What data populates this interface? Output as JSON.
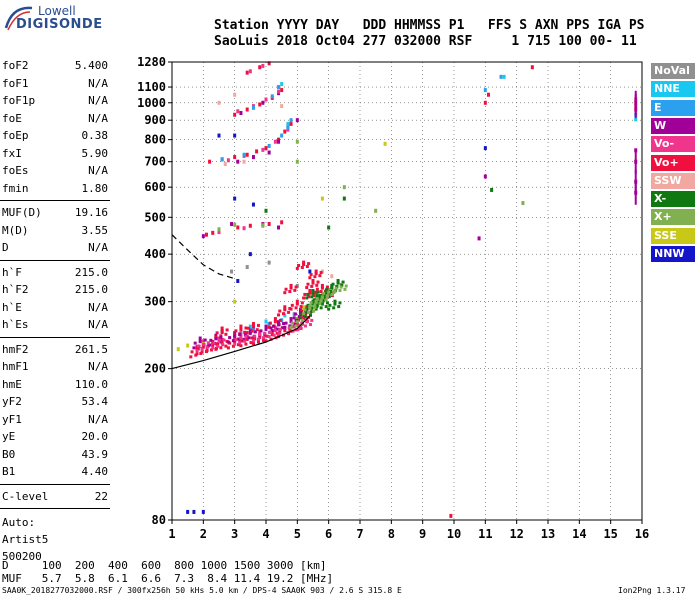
{
  "logo": {
    "line1": "Lowell",
    "line2": "DIGISONDE"
  },
  "header": {
    "labels_row": "Station YYYY DAY   DDD HHMMSS P1   FFS S AXN PPS IGA PS",
    "values_row": "SaoLuis 2018 Oct04 277 032000 RSF     1 715 100 00- 11"
  },
  "params_a": [
    {
      "label": "foF2",
      "value": "5.400"
    },
    {
      "label": "foF1",
      "value": "N/A"
    },
    {
      "label": "foF1p",
      "value": "N/A"
    },
    {
      "label": "foE",
      "value": "N/A"
    },
    {
      "label": "foEp",
      "value": "0.38"
    },
    {
      "label": "fxI",
      "value": "5.90"
    },
    {
      "label": "foEs",
      "value": "N/A"
    },
    {
      "label": "fmin",
      "value": "1.80"
    }
  ],
  "params_b": [
    {
      "label": "MUF(D)",
      "value": "19.16"
    },
    {
      "label": "M(D)",
      "value": "3.55"
    },
    {
      "label": "D",
      "value": "N/A"
    }
  ],
  "params_c": [
    {
      "label": "h`F",
      "value": "215.0"
    },
    {
      "label": "h`F2",
      "value": "215.0"
    },
    {
      "label": "h`E",
      "value": "N/A"
    },
    {
      "label": "h`Es",
      "value": "N/A"
    }
  ],
  "params_d": [
    {
      "label": "hmF2",
      "value": "261.5"
    },
    {
      "label": "hmF1",
      "value": "N/A"
    },
    {
      "label": "hmE",
      "value": "110.0"
    },
    {
      "label": "yF2",
      "value": "53.4"
    },
    {
      "label": "yF1",
      "value": "N/A"
    },
    {
      "label": "yE",
      "value": "20.0"
    },
    {
      "label": "B0",
      "value": "43.9"
    },
    {
      "label": "B1",
      "value": "4.40"
    }
  ],
  "params_e": [
    {
      "label": "C-level",
      "value": "22"
    }
  ],
  "auto_lines": [
    "Auto:",
    "Artist5",
    "500200"
  ],
  "legend": [
    {
      "label": "NoVal",
      "color": "#909090"
    },
    {
      "label": "NNE",
      "color": "#19c8f0"
    },
    {
      "label": "E",
      "color": "#2aa0ee"
    },
    {
      "label": "W",
      "color": "#a00098"
    },
    {
      "label": "Vo-",
      "color": "#f0358c"
    },
    {
      "label": "Vo+",
      "color": "#f01040"
    },
    {
      "label": "SSW",
      "color": "#f0a8a0"
    },
    {
      "label": "X-",
      "color": "#107810"
    },
    {
      "label": "X+",
      "color": "#80b050"
    },
    {
      "label": "SSE",
      "color": "#c8c818"
    },
    {
      "label": "NNW",
      "color": "#1414c8"
    }
  ],
  "bottom_table": {
    "row1": "D     100  200  400  600  800 1000 1500 3000 [km]",
    "row2": "MUF   5.7  5.8  6.1  6.6  7.3  8.4 11.4 19.2 [MHz]"
  },
  "footer": {
    "left": "SAA0K_2018277032000.RSF / 300fx256h 50 kHs 5.0 km / DPS-4 SAA0K 903 / 2.6 S 315.8 E",
    "right": "Ion2Png 1.3.17"
  },
  "chart_data": {
    "type": "scatter",
    "title": "",
    "xlabel": "",
    "ylabel": "",
    "xlim": [
      1,
      16
    ],
    "ylim": [
      80,
      1280
    ],
    "y_scale": "log",
    "x_ticks": [
      1,
      2,
      3,
      4,
      5,
      6,
      7,
      8,
      9,
      10,
      11,
      12,
      13,
      14,
      15,
      16
    ],
    "y_ticks": [
      80,
      200,
      300,
      400,
      500,
      600,
      700,
      800,
      900,
      1000,
      1100,
      1280
    ],
    "grid": true,
    "legend_placement": "right",
    "traces": [
      {
        "color": "#000000",
        "style": "solid",
        "x": [
          1.0,
          2.0,
          3.0,
          4.0,
          5.0,
          5.4
        ],
        "y": [
          200,
          210,
          222,
          235,
          255,
          275
        ]
      },
      {
        "color": "#000000",
        "style": "dashed",
        "x": [
          1.0,
          1.5,
          2.0,
          2.5,
          3.0
        ],
        "y": [
          450,
          410,
          375,
          355,
          345
        ]
      }
    ],
    "series": [
      {
        "color": "#f01040",
        "points": [
          [
            1.8,
            228
          ],
          [
            2.0,
            232
          ],
          [
            2.3,
            235
          ],
          [
            2.6,
            238
          ],
          [
            3.0,
            240
          ],
          [
            3.4,
            243
          ],
          [
            3.8,
            246
          ],
          [
            4.2,
            250
          ],
          [
            4.6,
            256
          ],
          [
            5.0,
            264
          ],
          [
            5.2,
            275
          ],
          [
            5.3,
            290
          ],
          [
            5.4,
            320
          ],
          [
            5.0,
            300
          ],
          [
            4.6,
            290
          ],
          [
            4.3,
            270
          ],
          [
            3.6,
            262
          ],
          [
            3.2,
            258
          ],
          [
            2.6,
            255
          ],
          [
            5.5,
            340
          ],
          [
            5.8,
            330
          ],
          [
            6.0,
            320
          ],
          [
            5.6,
            360
          ],
          [
            5.2,
            380
          ],
          [
            4.8,
            330
          ],
          [
            2.1,
            450
          ],
          [
            2.3,
            455
          ],
          [
            3.1,
            470
          ],
          [
            3.5,
            475
          ],
          [
            4.1,
            480
          ],
          [
            4.5,
            485
          ],
          [
            2.2,
            700
          ],
          [
            2.6,
            710
          ],
          [
            3.0,
            720
          ],
          [
            3.4,
            730
          ],
          [
            3.7,
            745
          ],
          [
            4.0,
            760
          ],
          [
            4.4,
            800
          ],
          [
            4.6,
            840
          ],
          [
            4.8,
            880
          ],
          [
            3.0,
            930
          ],
          [
            3.4,
            960
          ],
          [
            3.8,
            990
          ],
          [
            4.2,
            1030
          ],
          [
            4.5,
            1080
          ],
          [
            3.4,
            1200
          ],
          [
            3.8,
            1240
          ],
          [
            4.1,
            1270
          ],
          [
            9.9,
            82
          ],
          [
            11.0,
            1000
          ],
          [
            11.1,
            1050
          ],
          [
            12.5,
            1240
          ],
          [
            15.8,
            1000
          ],
          [
            15.8,
            960
          ]
        ]
      },
      {
        "color": "#a00098",
        "points": [
          [
            1.9,
            240
          ],
          [
            2.4,
            244
          ],
          [
            3.0,
            248
          ],
          [
            3.5,
            252
          ],
          [
            4.0,
            258
          ],
          [
            4.4,
            265
          ],
          [
            4.8,
            270
          ],
          [
            5.1,
            285
          ],
          [
            2.0,
            446
          ],
          [
            2.9,
            480
          ],
          [
            3.9,
            480
          ],
          [
            4.4,
            470
          ],
          [
            3.1,
            700
          ],
          [
            3.6,
            720
          ],
          [
            4.1,
            740
          ],
          [
            4.4,
            790
          ],
          [
            4.7,
            870
          ],
          [
            3.2,
            940
          ],
          [
            3.9,
            1000
          ],
          [
            4.4,
            1060
          ],
          [
            11.0,
            640
          ],
          [
            15.8,
            750
          ],
          [
            15.8,
            700
          ],
          [
            15.8,
            620
          ],
          [
            15.8,
            580
          ],
          [
            10.8,
            440
          ],
          [
            5.0,
            900
          ]
        ]
      },
      {
        "color": "#f0358c",
        "points": [
          [
            2.0,
            236
          ],
          [
            2.5,
            240
          ],
          [
            3.2,
            245
          ],
          [
            3.8,
            250
          ],
          [
            4.3,
            256
          ],
          [
            4.9,
            262
          ],
          [
            5.3,
            270
          ],
          [
            2.5,
            457
          ],
          [
            3.3,
            468
          ],
          [
            3.9,
            478
          ],
          [
            2.8,
            706
          ],
          [
            3.3,
            725
          ],
          [
            3.9,
            752
          ],
          [
            4.3,
            790
          ],
          [
            4.7,
            850
          ],
          [
            3.1,
            950
          ],
          [
            3.6,
            980
          ],
          [
            4.0,
            1020
          ],
          [
            4.4,
            1070
          ],
          [
            3.5,
            1210
          ],
          [
            3.9,
            1250
          ],
          [
            15.8,
            1020
          ],
          [
            15.8,
            980
          ]
        ]
      },
      {
        "color": "#2aa0ee",
        "points": [
          [
            3.2,
            250
          ],
          [
            3.6,
            255
          ],
          [
            4.1,
            262
          ],
          [
            4.5,
            268
          ],
          [
            4.9,
            278
          ],
          [
            2.6,
            710
          ],
          [
            3.3,
            730
          ],
          [
            4.1,
            770
          ],
          [
            4.5,
            820
          ],
          [
            4.7,
            860
          ],
          [
            4.8,
            900
          ],
          [
            3.6,
            970
          ],
          [
            4.2,
            1040
          ],
          [
            4.4,
            1100
          ],
          [
            11.0,
            1080
          ],
          [
            11.5,
            1170
          ],
          [
            15.8,
            930
          ]
        ]
      },
      {
        "color": "#19c8f0",
        "points": [
          [
            3.5,
            258
          ],
          [
            4.0,
            266
          ],
          [
            4.6,
            276
          ],
          [
            4.7,
            880
          ],
          [
            4.5,
            1120
          ],
          [
            11.6,
            1170
          ],
          [
            15.8,
            905
          ]
        ]
      },
      {
        "color": "#107810",
        "points": [
          [
            5.3,
            285
          ],
          [
            5.5,
            300
          ],
          [
            5.7,
            310
          ],
          [
            5.9,
            318
          ],
          [
            6.1,
            330
          ],
          [
            6.3,
            340
          ],
          [
            5.5,
            320
          ],
          [
            5.8,
            300
          ],
          [
            6.2,
            300
          ],
          [
            6.5,
            560
          ],
          [
            6.0,
            470
          ],
          [
            11.2,
            590
          ],
          [
            4.0,
            520
          ]
        ]
      },
      {
        "color": "#80b050",
        "points": [
          [
            5.0,
            270
          ],
          [
            5.4,
            292
          ],
          [
            5.6,
            305
          ],
          [
            5.8,
            312
          ],
          [
            6.0,
            322
          ],
          [
            6.4,
            332
          ],
          [
            2.5,
            465
          ],
          [
            3.0,
            478
          ],
          [
            3.9,
            475
          ],
          [
            5.0,
            790
          ],
          [
            5.0,
            700
          ],
          [
            6.5,
            600
          ],
          [
            7.5,
            520
          ],
          [
            12.2,
            545
          ]
        ]
      },
      {
        "color": "#c8c818",
        "points": [
          [
            1.2,
            225
          ],
          [
            1.5,
            230
          ],
          [
            2.0,
            232
          ],
          [
            3.0,
            300
          ],
          [
            5.2,
            290
          ],
          [
            7.8,
            780
          ],
          [
            5.8,
            560
          ]
        ]
      },
      {
        "color": "#1414c8",
        "points": [
          [
            1.5,
            84
          ],
          [
            1.7,
            84
          ],
          [
            2.0,
            84
          ],
          [
            3.0,
            560
          ],
          [
            3.6,
            540
          ],
          [
            3.5,
            400
          ],
          [
            3.1,
            340
          ],
          [
            2.5,
            820
          ],
          [
            3.0,
            820
          ],
          [
            11.0,
            760
          ],
          [
            5.4,
            360
          ],
          [
            2.6,
            250
          ]
        ]
      },
      {
        "color": "#f0a8a0",
        "points": [
          [
            2.7,
            690
          ],
          [
            3.3,
            700
          ],
          [
            2.5,
            1000
          ],
          [
            3.0,
            1050
          ],
          [
            4.5,
            980
          ],
          [
            5.8,
            360
          ],
          [
            6.1,
            350
          ]
        ]
      },
      {
        "color": "#909090",
        "points": [
          [
            2.9,
            360
          ],
          [
            3.4,
            370
          ],
          [
            4.1,
            380
          ],
          [
            5.0,
            330
          ]
        ]
      }
    ]
  }
}
